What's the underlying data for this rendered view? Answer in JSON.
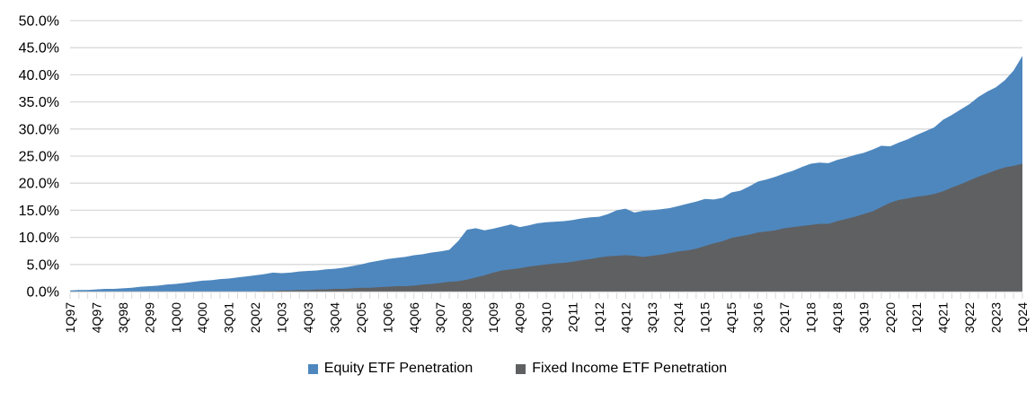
{
  "chart_data": {
    "type": "area",
    "mode": "overlapping",
    "x_start": "1Q97",
    "x_end": "1Q24",
    "x_frequency": "quarterly",
    "x_label_every": 3,
    "x_tick_labels": [
      "1Q97",
      "4Q97",
      "3Q98",
      "2Q99",
      "1Q00",
      "4Q00",
      "3Q01",
      "2Q02",
      "1Q03",
      "4Q03",
      "3Q04",
      "2Q05",
      "1Q06",
      "4Q06",
      "3Q07",
      "2Q08",
      "1Q09",
      "4Q09",
      "3Q10",
      "2Q11",
      "1Q12",
      "4Q12",
      "3Q13",
      "2Q14",
      "1Q15",
      "4Q15",
      "3Q16",
      "2Q17",
      "1Q18",
      "4Q18",
      "3Q19",
      "2Q20",
      "1Q21",
      "4Q21",
      "3Q22",
      "2Q23",
      "1Q24"
    ],
    "y_axis": {
      "min": 0,
      "max": 50,
      "step": 5,
      "unit": "%"
    },
    "y_tick_labels": [
      "0.0%",
      "5.0%",
      "10.0%",
      "15.0%",
      "20.0%",
      "25.0%",
      "30.0%",
      "35.0%",
      "40.0%",
      "45.0%",
      "50.0%"
    ],
    "grid": true,
    "legend_position": "bottom",
    "series": [
      {
        "name": "Equity ETF Penetration",
        "color": "#4E87BE",
        "values": [
          0.2,
          0.3,
          0.3,
          0.4,
          0.5,
          0.5,
          0.6,
          0.7,
          0.9,
          1.0,
          1.1,
          1.3,
          1.4,
          1.6,
          1.8,
          2.0,
          2.1,
          2.3,
          2.4,
          2.6,
          2.8,
          3.0,
          3.2,
          3.5,
          3.4,
          3.5,
          3.7,
          3.8,
          3.9,
          4.1,
          4.2,
          4.4,
          4.7,
          5.0,
          5.4,
          5.7,
          6.0,
          6.2,
          6.4,
          6.7,
          6.9,
          7.2,
          7.4,
          7.7,
          9.3,
          11.4,
          11.7,
          11.3,
          11.6,
          12.0,
          12.4,
          11.9,
          12.2,
          12.6,
          12.8,
          12.9,
          13.0,
          13.2,
          13.5,
          13.7,
          13.8,
          14.3,
          15.0,
          15.3,
          14.6,
          14.9,
          15.0,
          15.2,
          15.4,
          15.8,
          16.2,
          16.6,
          17.1,
          17.0,
          17.3,
          18.3,
          18.6,
          19.4,
          20.3,
          20.7,
          21.2,
          21.8,
          22.3,
          23.0,
          23.6,
          23.8,
          23.7,
          24.3,
          24.7,
          25.2,
          25.6,
          26.2,
          26.9,
          26.8,
          27.5,
          28.1,
          28.9,
          29.6,
          30.3,
          31.7,
          32.6,
          33.6,
          34.6,
          35.9,
          36.9,
          37.7,
          39.0,
          40.8,
          43.5
        ]
      },
      {
        "name": "Fixed Income ETF Penetration",
        "color": "#5F6062",
        "values": [
          0,
          0,
          0,
          0,
          0,
          0,
          0,
          0,
          0,
          0,
          0,
          0,
          0,
          0,
          0,
          0,
          0,
          0,
          0,
          0,
          0,
          0,
          0.1,
          0.1,
          0.2,
          0.2,
          0.3,
          0.3,
          0.4,
          0.4,
          0.5,
          0.5,
          0.6,
          0.7,
          0.7,
          0.8,
          0.9,
          1.0,
          1.0,
          1.1,
          1.3,
          1.4,
          1.6,
          1.8,
          1.9,
          2.2,
          2.6,
          3.0,
          3.5,
          3.9,
          4.1,
          4.3,
          4.6,
          4.8,
          5.0,
          5.2,
          5.3,
          5.5,
          5.8,
          6.0,
          6.3,
          6.5,
          6.6,
          6.7,
          6.6,
          6.4,
          6.6,
          6.8,
          7.1,
          7.4,
          7.6,
          7.9,
          8.4,
          8.9,
          9.3,
          9.9,
          10.2,
          10.5,
          10.9,
          11.1,
          11.3,
          11.7,
          11.9,
          12.1,
          12.3,
          12.5,
          12.5,
          13.0,
          13.4,
          13.8,
          14.3,
          14.8,
          15.6,
          16.4,
          16.9,
          17.2,
          17.5,
          17.7,
          18.0,
          18.5,
          19.2,
          19.8,
          20.5,
          21.2,
          21.8,
          22.4,
          22.9,
          23.2,
          23.6
        ]
      }
    ]
  },
  "colors": {
    "gridline": "#D9D9D9",
    "tick": "#D9D9D9",
    "axis_text": "#000000",
    "background": "#FFFFFF"
  }
}
